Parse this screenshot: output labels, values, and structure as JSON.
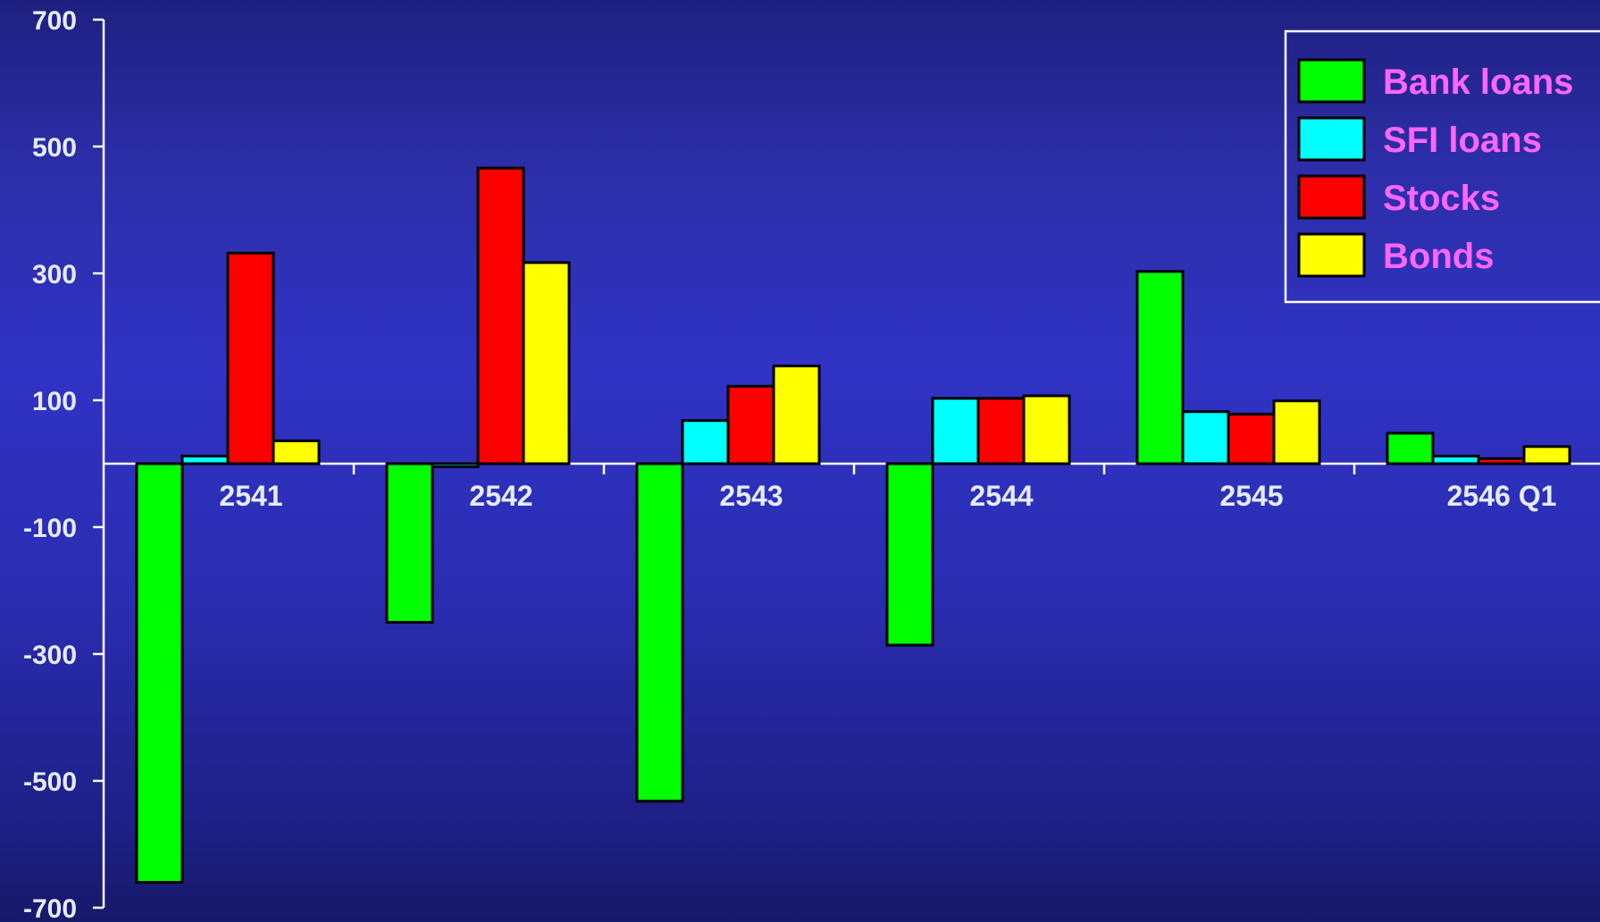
{
  "chart_data": {
    "type": "bar",
    "title": "",
    "xlabel": "",
    "ylabel": "",
    "categories": [
      "2541",
      "2542",
      "2543",
      "2544",
      "2545",
      "2546 Q1"
    ],
    "series": [
      {
        "name": "Bank loans",
        "color": "#00ff00",
        "values": [
          -660,
          -250,
          -532,
          -286,
          303,
          48
        ]
      },
      {
        "name": "SFI loans",
        "color": "#00ffff",
        "values": [
          12,
          -5,
          68,
          103,
          82,
          12
        ]
      },
      {
        "name": "Stocks",
        "color": "#ff0000",
        "values": [
          332,
          466,
          122,
          103,
          78,
          8
        ]
      },
      {
        "name": "Bonds",
        "color": "#ffff00",
        "values": [
          36,
          317,
          154,
          107,
          99,
          27
        ]
      }
    ],
    "ylim": [
      -700,
      700
    ],
    "yticks": [
      "700",
      "500",
      "300",
      "100",
      "-100",
      "-300",
      "-500",
      "-700"
    ],
    "legend_position": "top-right",
    "legend_text_color": "#ff66ff",
    "axis_color": "#ffffff",
    "grid": false
  }
}
